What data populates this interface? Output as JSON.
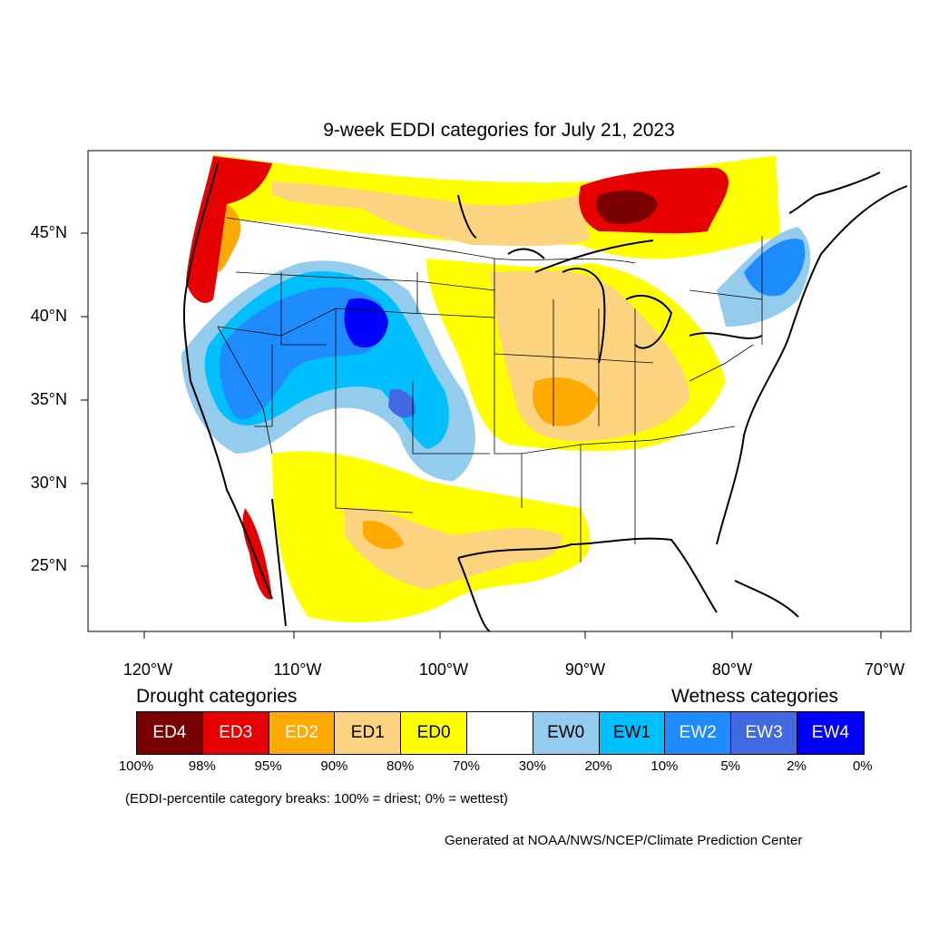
{
  "title": "9-week EDDI categories for July 21, 2023",
  "lat_labels": [
    "45°N",
    "40°N",
    "35°N",
    "30°N",
    "25°N"
  ],
  "lon_labels": [
    "120°W",
    "110°W",
    "100°W",
    "90°W",
    "80°W",
    "70°W"
  ],
  "legend": {
    "drought_heading": "Drought categories",
    "wetness_heading": "Wetness categories",
    "categories": [
      {
        "label": "ED4",
        "color": "#7a0000",
        "text_color": "#ffffff"
      },
      {
        "label": "ED3",
        "color": "#e60000",
        "text_color": "#ffffff"
      },
      {
        "label": "ED2",
        "color": "#ffaa00",
        "text_color": "#ffffff"
      },
      {
        "label": "ED1",
        "color": "#fcd37f",
        "text_color": "#000000"
      },
      {
        "label": "ED0",
        "color": "#ffff00",
        "text_color": "#000000"
      },
      {
        "label": "",
        "color": "#ffffff",
        "text_color": "#000000"
      },
      {
        "label": "EW0",
        "color": "#93ccec",
        "text_color": "#000000"
      },
      {
        "label": "EW1",
        "color": "#00bfff",
        "text_color": "#000000"
      },
      {
        "label": "EW2",
        "color": "#1e8cff",
        "text_color": "#ffffff"
      },
      {
        "label": "EW3",
        "color": "#4169e1",
        "text_color": "#ffffff"
      },
      {
        "label": "EW4",
        "color": "#0000ff",
        "text_color": "#ffffff"
      }
    ],
    "percent_breaks": [
      "100%",
      "98%",
      "95%",
      "90%",
      "80%",
      "70%",
      "30%",
      "20%",
      "10%",
      "5%",
      "2%",
      "0%"
    ]
  },
  "note": "(EDDI-percentile category breaks: 100% = driest; 0% = wettest)",
  "credit": "Generated at NOAA/NWS/NCEP/Climate Prediction Center"
}
